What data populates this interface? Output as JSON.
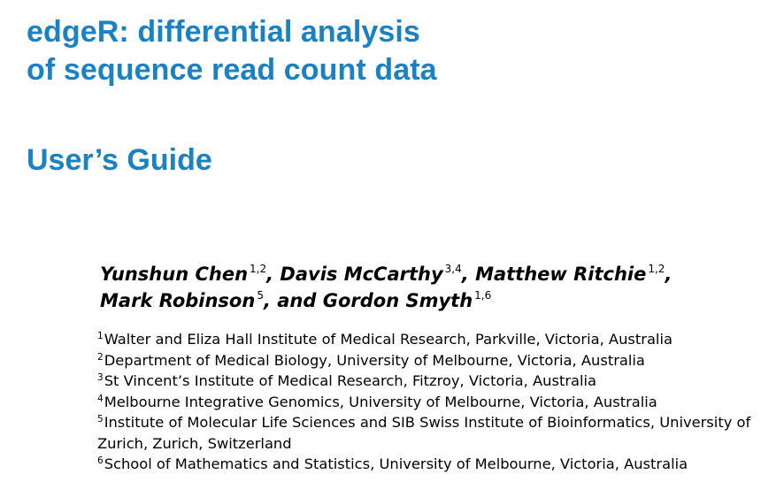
{
  "title": {
    "line1": "edgeR: differential analysis",
    "line2": "of sequence read count data"
  },
  "subtitle": "User’s Guide",
  "authors": [
    {
      "name": "Yunshun Chen",
      "sup": "1,2",
      "after": ", "
    },
    {
      "name": "Davis McCarthy",
      "sup": "3,4",
      "after": ", "
    },
    {
      "name": "Matthew Ritchie",
      "sup": "1,2",
      "after": ","
    },
    {
      "name": "Mark Robinson",
      "sup": "5",
      "after": ", and "
    },
    {
      "name": "Gordon Smyth",
      "sup": "1,6",
      "after": ""
    }
  ],
  "affiliations": [
    {
      "num": "1",
      "text": "Walter and Eliza Hall Institute of Medical Research, Parkville, Victoria, Australia"
    },
    {
      "num": "2",
      "text": "Department of Medical Biology, University of Melbourne, Victoria, Australia"
    },
    {
      "num": "3",
      "text": "St Vincent’s Institute of Medical Research, Fitzroy, Victoria, Australia"
    },
    {
      "num": "4",
      "text": "Melbourne Integrative Genomics, University of Melbourne, Victoria, Australia"
    },
    {
      "num": "5",
      "text": "Institute of Molecular Life Sciences and SIB Swiss Institute of Bioinformatics, University of Zurich, Zurich, Switzerland"
    },
    {
      "num": "6",
      "text": "School of Mathematics and Statistics, University of Melbourne, Victoria, Australia"
    }
  ]
}
